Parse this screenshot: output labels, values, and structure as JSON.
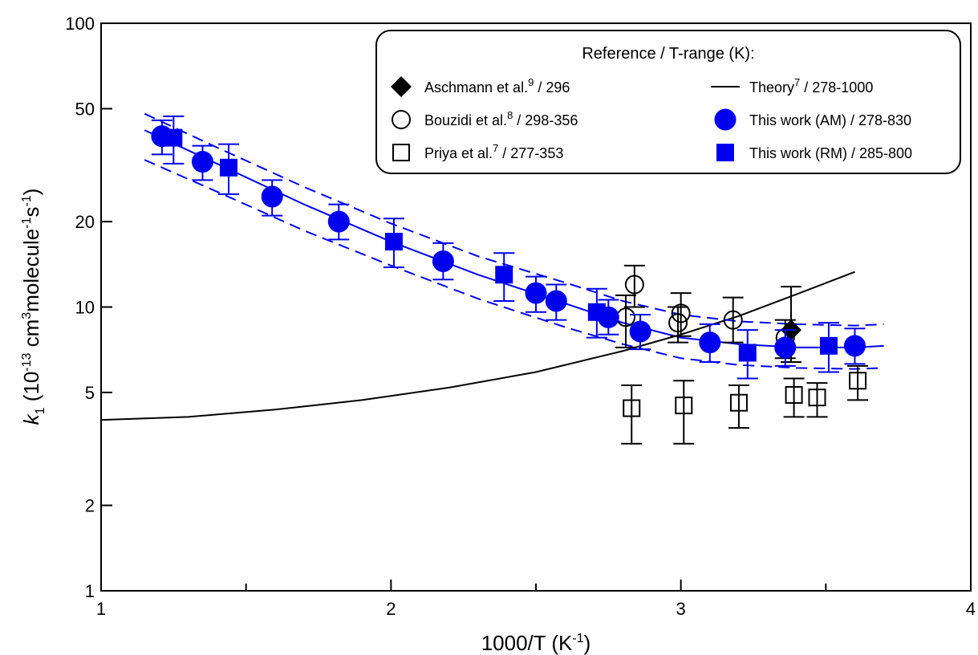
{
  "chart_data": {
    "type": "scatter",
    "title": "",
    "xlabel": "1000/T (K",
    "xlabel_sup": "-1",
    "xlabel_end": ")",
    "ylabel_parts": [
      {
        "t": "k",
        "style": "italic"
      },
      {
        "t": "1",
        "style": "sub"
      },
      {
        "t": " (10",
        "style": "normal"
      },
      {
        "t": "-13",
        "style": "sup"
      },
      {
        "t": " cm",
        "style": "normal"
      },
      {
        "t": "3",
        "style": "sup"
      },
      {
        "t": "molecule",
        "style": "normal"
      },
      {
        "t": "-1",
        "style": "sup"
      },
      {
        "t": "s",
        "style": "normal"
      },
      {
        "t": "-1",
        "style": "sup"
      },
      {
        "t": ")",
        "style": "normal"
      }
    ],
    "x_range": [
      1,
      4
    ],
    "y_range": [
      1,
      100
    ],
    "y_scale": "log",
    "x_ticks": [
      1,
      2,
      3,
      4
    ],
    "x_tick_labels": [
      "1",
      "2",
      "3",
      "4"
    ],
    "x_minor_ticks": [
      1.5,
      2.5,
      3.5
    ],
    "y_ticks": [
      1,
      2,
      5,
      10,
      20,
      50,
      100
    ],
    "y_tick_labels": [
      "1",
      "2",
      "5",
      "10",
      "20",
      "50",
      "100"
    ],
    "grid": false,
    "legend": {
      "position": "top-right",
      "title": "Reference / T-range (K):",
      "entries": [
        {
          "text": "Aschmann et al.",
          "sup": "9",
          "tail": " / 296",
          "marker": "diamond",
          "column": 0,
          "row": 0
        },
        {
          "text": "Bouzidi et al.",
          "sup": "8",
          "tail": " / 298-356",
          "marker": "circle-open",
          "column": 0,
          "row": 1
        },
        {
          "text": "Priya et al.",
          "sup": "7",
          "tail": " / 277-353",
          "marker": "square-open",
          "column": 0,
          "row": 2
        },
        {
          "text": "Theory",
          "sup": "7",
          "tail": " / 278-1000",
          "marker": "line",
          "column": 1,
          "row": 0
        },
        {
          "text": "This work (AM)",
          "sup": "",
          "tail": " / 278-830",
          "marker": "circle-filled",
          "column": 1,
          "row": 1
        },
        {
          "text": "This work (RM)",
          "sup": "",
          "tail": " / 285-800",
          "marker": "square-filled",
          "column": 1,
          "row": 2
        }
      ]
    },
    "colors": {
      "blue": "#0000ee",
      "black": "#000000"
    },
    "series": [
      {
        "name": "This work (AM)",
        "marker": "circle-filled",
        "color": "#0000ee",
        "points": [
          {
            "x": 1.21,
            "y": 40.0,
            "lo": 34.5,
            "hi": 45.5
          },
          {
            "x": 1.35,
            "y": 32.5,
            "lo": 28.0,
            "hi": 37.0
          },
          {
            "x": 1.59,
            "y": 24.5,
            "lo": 21.0,
            "hi": 28.0
          },
          {
            "x": 1.82,
            "y": 20.0,
            "lo": 17.3,
            "hi": 23.0
          },
          {
            "x": 2.18,
            "y": 14.5,
            "lo": 12.5,
            "hi": 16.8
          },
          {
            "x": 2.5,
            "y": 11.2,
            "lo": 9.6,
            "hi": 12.8
          },
          {
            "x": 2.57,
            "y": 10.5,
            "lo": 9.0,
            "hi": 12.0
          },
          {
            "x": 2.75,
            "y": 9.2,
            "lo": 8.0,
            "hi": 10.6
          },
          {
            "x": 2.86,
            "y": 8.2,
            "lo": 7.1,
            "hi": 9.4
          },
          {
            "x": 3.1,
            "y": 7.5,
            "lo": 6.4,
            "hi": 8.7
          },
          {
            "x": 3.36,
            "y": 7.2,
            "lo": 6.2,
            "hi": 8.3
          },
          {
            "x": 3.6,
            "y": 7.3,
            "lo": 6.3,
            "hi": 8.4
          }
        ]
      },
      {
        "name": "This work (RM)",
        "marker": "square-filled",
        "color": "#0000ee",
        "points": [
          {
            "x": 1.25,
            "y": 39.5,
            "lo": 32.0,
            "hi": 47.0
          },
          {
            "x": 1.44,
            "y": 31.0,
            "lo": 25.0,
            "hi": 37.5
          },
          {
            "x": 2.01,
            "y": 17.0,
            "lo": 13.8,
            "hi": 20.5
          },
          {
            "x": 2.39,
            "y": 13.0,
            "lo": 10.5,
            "hi": 15.5
          },
          {
            "x": 2.71,
            "y": 9.6,
            "lo": 7.8,
            "hi": 11.6
          },
          {
            "x": 3.23,
            "y": 6.9,
            "lo": 5.6,
            "hi": 8.3
          },
          {
            "x": 3.51,
            "y": 7.3,
            "lo": 5.9,
            "hi": 8.8
          }
        ]
      },
      {
        "name": "Bouzidi et al.",
        "marker": "circle-open",
        "color": "#000000",
        "points": [
          {
            "x": 2.81,
            "y": 9.2,
            "lo": 7.2,
            "hi": 11.0
          },
          {
            "x": 2.84,
            "y": 12.0,
            "lo": 10.0,
            "hi": 14.0
          },
          {
            "x": 2.99,
            "y": 8.8,
            "lo": 7.5,
            "hi": 10.0
          },
          {
            "x": 3.0,
            "y": 9.5,
            "lo": 7.9,
            "hi": 11.2
          },
          {
            "x": 3.18,
            "y": 9.0,
            "lo": 7.5,
            "hi": 10.8
          },
          {
            "x": 3.36,
            "y": 7.8,
            "lo": 6.6,
            "hi": 9.0
          }
        ]
      },
      {
        "name": "Priya et al.",
        "marker": "square-open",
        "color": "#000000",
        "points": [
          {
            "x": 2.83,
            "y": 4.4,
            "lo": 3.3,
            "hi": 5.3
          },
          {
            "x": 3.01,
            "y": 4.5,
            "lo": 3.3,
            "hi": 5.5
          },
          {
            "x": 3.2,
            "y": 4.6,
            "lo": 3.75,
            "hi": 5.3
          },
          {
            "x": 3.39,
            "y": 4.9,
            "lo": 4.1,
            "hi": 5.6
          },
          {
            "x": 3.47,
            "y": 4.8,
            "lo": 4.1,
            "hi": 5.4
          },
          {
            "x": 3.61,
            "y": 5.5,
            "lo": 4.7,
            "hi": 6.2
          }
        ]
      },
      {
        "name": "Aschmann et al.",
        "marker": "diamond",
        "color": "#000000",
        "points": [
          {
            "x": 3.38,
            "y": 8.3,
            "lo": 6.4,
            "hi": 11.8
          }
        ]
      }
    ],
    "theory_curve": {
      "name": "Theory",
      "color": "#000000",
      "x": [
        1.0,
        1.3,
        1.6,
        1.9,
        2.2,
        2.5,
        2.8,
        3.0,
        3.2,
        3.4,
        3.6
      ],
      "y": [
        4.0,
        4.1,
        4.35,
        4.7,
        5.2,
        5.9,
        7.0,
        8.0,
        9.3,
        11.1,
        13.3
      ]
    },
    "fit_line": {
      "name": "This work fit",
      "color": "#0000ee",
      "x": [
        1.15,
        1.4,
        1.7,
        2.0,
        2.3,
        2.6,
        2.8,
        3.0,
        3.2,
        3.4,
        3.6,
        3.7
      ],
      "y": [
        42.0,
        32.0,
        23.0,
        17.0,
        13.0,
        10.3,
        8.8,
        7.8,
        7.4,
        7.2,
        7.2,
        7.3
      ]
    },
    "fit_bands": {
      "upper": {
        "x": [
          1.15,
          1.4,
          1.7,
          2.0,
          2.3,
          2.6,
          2.8,
          3.0,
          3.2,
          3.4,
          3.6,
          3.7
        ],
        "y": [
          48.0,
          36.5,
          26.5,
          19.7,
          15.1,
          12.2,
          10.5,
          9.4,
          8.9,
          8.7,
          8.6,
          8.7
        ]
      },
      "lower": {
        "x": [
          1.15,
          1.4,
          1.7,
          2.0,
          2.3,
          2.6,
          2.8,
          3.0,
          3.2,
          3.4,
          3.6,
          3.7
        ],
        "y": [
          33.0,
          25.5,
          18.6,
          14.0,
          10.7,
          8.5,
          7.4,
          6.6,
          6.25,
          6.1,
          6.05,
          6.1
        ]
      }
    }
  }
}
